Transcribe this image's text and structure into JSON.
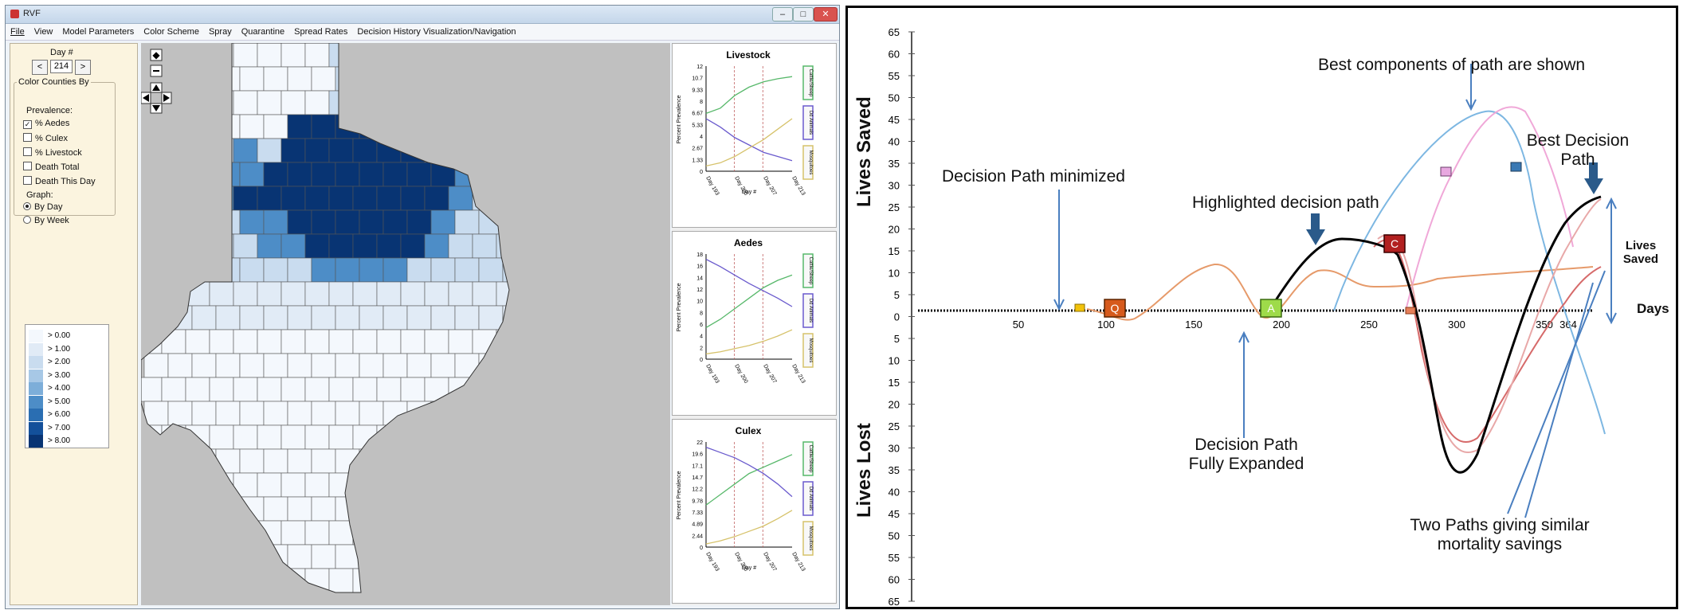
{
  "window": {
    "title": "RVF",
    "controls": [
      "–",
      "□",
      "✕"
    ]
  },
  "menu": [
    "File",
    "View",
    "Model Parameters",
    "Color Scheme",
    "Spray",
    "Quarantine",
    "Spread Rates",
    "Decision History Visualization/Navigation"
  ],
  "left_panel": {
    "day_label": "Day #",
    "day_value": "214",
    "prev": "<",
    "next": ">",
    "color_counties_label": "Color Counties By",
    "prevalence_label": "Prevalence:",
    "options": [
      {
        "label": "% Aedes",
        "checked": true
      },
      {
        "label": "% Culex",
        "checked": false
      },
      {
        "label": "% Livestock",
        "checked": false
      },
      {
        "label": "Death Total",
        "checked": false
      },
      {
        "label": "Death This Day",
        "checked": false
      }
    ],
    "graph_label": "Graph:",
    "graph_options": [
      {
        "label": "By Day",
        "selected": true
      },
      {
        "label": "By Week",
        "selected": false
      }
    ],
    "legend": [
      "> 0.00",
      "> 1.00",
      "> 2.00",
      "> 3.00",
      "> 4.00",
      "> 5.00",
      "> 6.00",
      "> 7.00",
      "> 8.00"
    ],
    "legend_colors": [
      "#f4f8fd",
      "#e1ebf6",
      "#c9dcef",
      "#a7c8e6",
      "#7daed9",
      "#4d8dc7",
      "#2a6eb2",
      "#13509a",
      "#083473"
    ]
  },
  "charts": [
    {
      "title": "Livestock",
      "yticks": [
        "12",
        "10.7",
        "9.33",
        "8",
        "6.67",
        "5.33",
        "4",
        "2.67",
        "1.33",
        "0"
      ],
      "ylabel": "Percent Prevalence",
      "xticks": [
        "Day 193",
        "Day 200",
        "Day 207",
        "Day 213"
      ],
      "xlabel": "Day #",
      "legend": [
        "Cattle/Sheep",
        "Dd Animals",
        "Mosquitoes"
      ]
    },
    {
      "title": "Aedes",
      "yticks": [
        "18",
        "16",
        "14",
        "12",
        "10",
        "8",
        "6",
        "4",
        "2",
        "0"
      ],
      "ylabel": "Percent Prevalence",
      "xticks": [
        "Day 193",
        "Day 200",
        "Day 207",
        "Day 213"
      ],
      "xlabel": "",
      "legend": [
        "Cattle/Sheep",
        "Dd Animals",
        "Mosquitoes"
      ]
    },
    {
      "title": "Culex",
      "yticks": [
        "22",
        "19.6",
        "17.1",
        "14.7",
        "12.2",
        "9.78",
        "7.33",
        "4.89",
        "2.44",
        "0"
      ],
      "ylabel": "Percent Prevalence",
      "xticks": [
        "Day 193",
        "Day 200",
        "Day 207",
        "Day 213"
      ],
      "xlabel": "Day #",
      "legend": [
        "Cattle/Sheep",
        "Dd Animals",
        "Mosquitoes"
      ]
    }
  ],
  "decision_chart": {
    "ylabel_top": "Lives Saved",
    "ylabel_bottom": "Lives Lost",
    "yticks": [
      "65",
      "60",
      "55",
      "50",
      "45",
      "40",
      "35",
      "30",
      "25",
      "20",
      "15",
      "10",
      "5",
      "0",
      "5",
      "10",
      "15",
      "20",
      "25",
      "30",
      "35",
      "40",
      "45",
      "50",
      "55",
      "60",
      "65"
    ],
    "xticks": [
      "50",
      "100",
      "150",
      "200",
      "250",
      "300",
      "350",
      "364"
    ],
    "xlabel": "Days",
    "annotations": {
      "minimized": "Decision Path minimized",
      "highlighted": "Highlighted decision path",
      "best_components": "Best components of path are shown",
      "best_path_1": "Best Decision",
      "best_path_2": "Path",
      "expanded_1": "Decision Path",
      "expanded_2": "Fully Expanded",
      "two_paths_1": "Two Paths giving similar",
      "two_paths_2": "mortality savings",
      "lives_saved_1": "Lives",
      "lives_saved_2": "Saved"
    },
    "markers": {
      "q": "Q",
      "a": "A",
      "c": "C"
    }
  }
}
